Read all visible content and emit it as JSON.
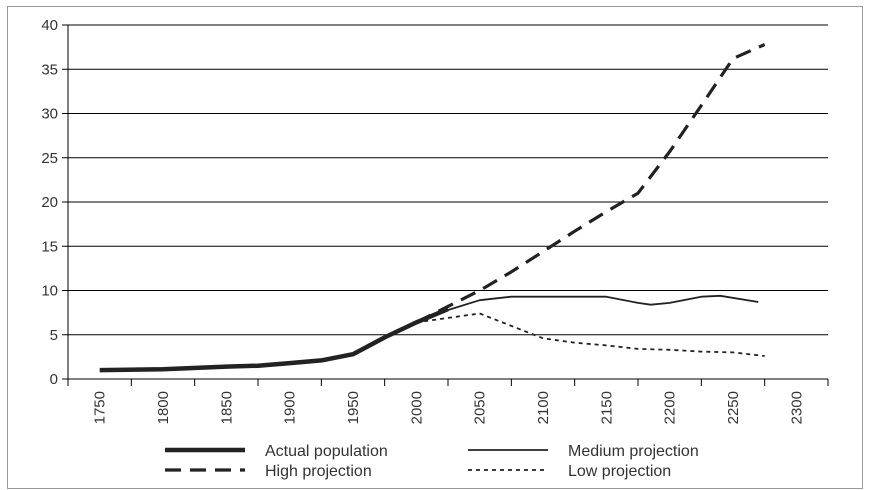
{
  "chart_data": {
    "type": "line",
    "title": "",
    "xlabel": "",
    "ylabel": "",
    "ylim": [
      0,
      40
    ],
    "yticks": [
      0,
      5,
      10,
      15,
      20,
      25,
      30,
      35,
      40
    ],
    "categories": [
      "1750",
      "1800",
      "1850",
      "1900",
      "1950",
      "2000",
      "2050",
      "2100",
      "2150",
      "2200",
      "2250",
      "2300"
    ],
    "grid": "horizontal",
    "legend_position": "bottom",
    "series": [
      {
        "name": "Actual population",
        "style": "thick-solid",
        "points": [
          [
            1750,
            1.0
          ],
          [
            1800,
            1.1
          ],
          [
            1850,
            1.4
          ],
          [
            1875,
            1.5
          ],
          [
            1900,
            1.8
          ],
          [
            1925,
            2.1
          ],
          [
            1950,
            2.8
          ],
          [
            1975,
            4.7
          ],
          [
            2000,
            6.4
          ],
          [
            2025,
            7.9
          ]
        ]
      },
      {
        "name": "Medium projection",
        "style": "thin-solid",
        "points": [
          [
            2000,
            6.4
          ],
          [
            2025,
            7.8
          ],
          [
            2050,
            8.9
          ],
          [
            2075,
            9.3
          ],
          [
            2100,
            9.3
          ],
          [
            2125,
            9.3
          ],
          [
            2150,
            9.3
          ],
          [
            2175,
            8.6
          ],
          [
            2185,
            8.4
          ],
          [
            2200,
            8.6
          ],
          [
            2225,
            9.3
          ],
          [
            2240,
            9.4
          ],
          [
            2270,
            8.7
          ]
        ]
      },
      {
        "name": "High projection",
        "style": "dashed",
        "points": [
          [
            2000,
            6.4
          ],
          [
            2025,
            8.2
          ],
          [
            2050,
            10.0
          ],
          [
            2075,
            12.1
          ],
          [
            2100,
            14.4
          ],
          [
            2125,
            16.7
          ],
          [
            2150,
            18.9
          ],
          [
            2175,
            21.0
          ],
          [
            2200,
            25.7
          ],
          [
            2225,
            30.9
          ],
          [
            2250,
            36.2
          ],
          [
            2275,
            37.8
          ]
        ]
      },
      {
        "name": "Low projection",
        "style": "dotted",
        "points": [
          [
            2000,
            6.4
          ],
          [
            2025,
            6.9
          ],
          [
            2050,
            7.4
          ],
          [
            2075,
            6.0
          ],
          [
            2100,
            4.6
          ],
          [
            2125,
            4.1
          ],
          [
            2150,
            3.8
          ],
          [
            2175,
            3.4
          ],
          [
            2200,
            3.3
          ],
          [
            2225,
            3.1
          ],
          [
            2250,
            3.0
          ],
          [
            2275,
            2.6
          ]
        ]
      }
    ],
    "legend": [
      {
        "label": "Actual population",
        "style": "thick-solid"
      },
      {
        "label": "Medium projection",
        "style": "thin-solid"
      },
      {
        "label": "High projection",
        "style": "dashed"
      },
      {
        "label": "Low projection",
        "style": "dotted"
      }
    ]
  },
  "colors": {
    "lines": "#222222",
    "grid": "#000000",
    "text": "#333333",
    "frame": "#9a9a9a"
  }
}
